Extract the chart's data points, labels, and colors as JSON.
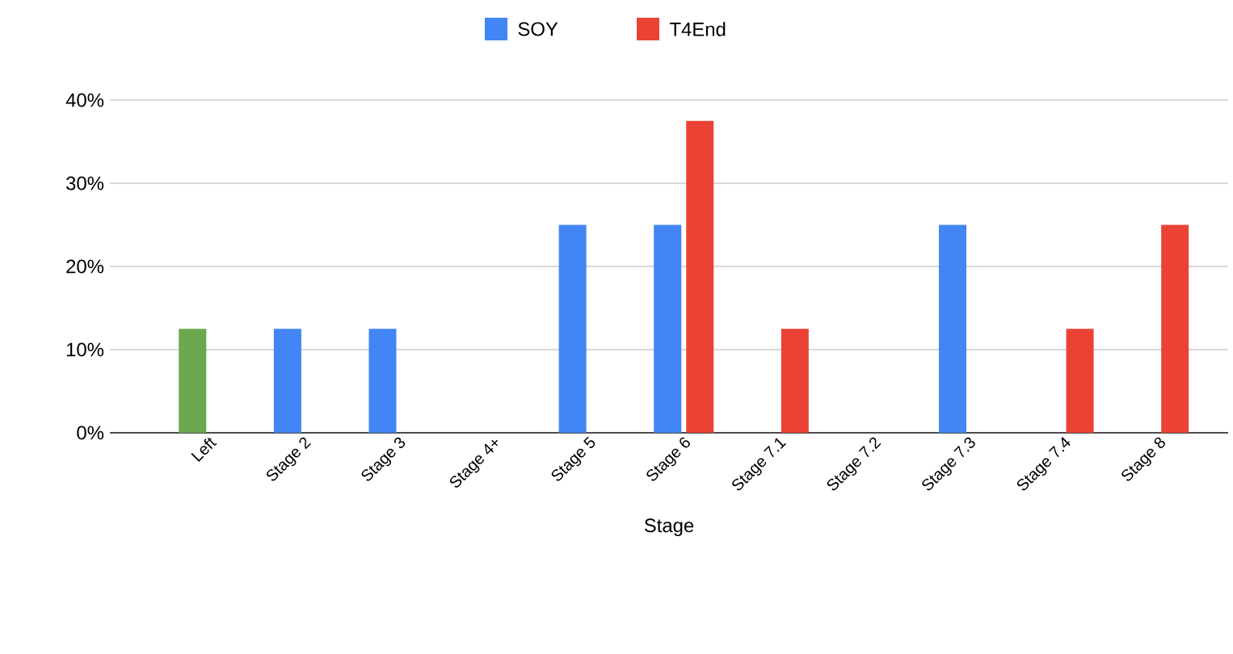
{
  "chart_data": {
    "type": "bar",
    "xlabel": "Stage",
    "categories": [
      "Left",
      "Stage 2",
      "Stage 3",
      "Stage 4+",
      "Stage 5",
      "Stage 6",
      "Stage 7.1",
      "Stage 7.2",
      "Stage 7.3",
      "Stage 7.4",
      "Stage 8"
    ],
    "series": [
      {
        "name": "SOY",
        "color": "#4285f4",
        "colors": [
          "#6aa84f",
          "#4285f4",
          "#4285f4",
          "#4285f4",
          "#4285f4",
          "#4285f4",
          "#4285f4",
          "#4285f4",
          "#4285f4",
          "#4285f4",
          "#4285f4"
        ],
        "values": [
          12.5,
          12.5,
          12.5,
          null,
          25,
          25,
          null,
          null,
          25,
          null,
          null
        ]
      },
      {
        "name": "T4End",
        "color": "#ea4335",
        "values": [
          null,
          null,
          null,
          null,
          null,
          37.5,
          12.5,
          null,
          null,
          12.5,
          25
        ]
      }
    ],
    "ylim": [
      0,
      40
    ],
    "yticks": [
      {
        "value": 0,
        "label": "0%"
      },
      {
        "value": 10,
        "label": "10%"
      },
      {
        "value": 20,
        "label": "20%"
      },
      {
        "value": 30,
        "label": "30%"
      },
      {
        "value": 40,
        "label": "40%"
      }
    ],
    "grid": "y",
    "legend": "top"
  }
}
